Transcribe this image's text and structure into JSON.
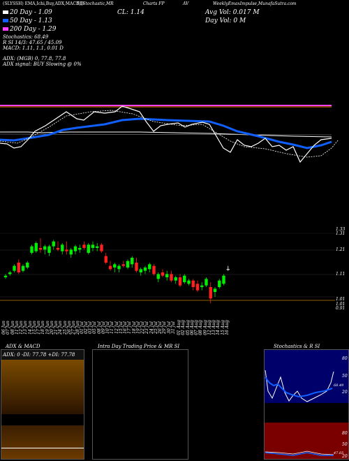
{
  "header": {
    "titles": [
      "(SLYSSH) EMA,Ichi,Buy,ADX,MACD,B",
      "SI,Stochastic,MR",
      "Charts FP",
      "AV",
      "WeeklyEmaxImpulse,MunafaSutra.com"
    ],
    "cl_label": "CL: 1.14",
    "avg_vol_label": "Avg Vol: 0.017 M",
    "day_vol_label": "Day Vol: 0   M",
    "ema": [
      {
        "label": "20  Day -  1.09",
        "color": "#ffffff"
      },
      {
        "label": "50  Day -  1.13",
        "color": "#1060ff"
      },
      {
        "label": "200  Day -  1.29",
        "color": "#ff40ff"
      }
    ],
    "stoch_line": "Stochastics: 68.49",
    "si_line": "R                       SI 14/3: 47.65 / 45.09",
    "macd_line": "MACD: 1.11,  1.1,  0.01 D",
    "adx_line": "ADX:                          (MGB) 0,  77.8,  77.8",
    "adx_signal_line": "ADX  signal:                               BUY Slowing @ 0%"
  },
  "price_axis_labels": [
    "1.33",
    "1.31",
    "1.21",
    "1.11",
    "1.01",
    "1.01",
    "0.91"
  ],
  "date_labels": [
    "06 Jun",
    "07 Jun",
    "08 Jun",
    "11 Jun",
    "12 Jun",
    "13 Jun",
    "14 Jun",
    "15 Jun",
    "17 Jun",
    "18 Jun",
    "19 Jun",
    "20 Jun",
    "21 Jun",
    "24 Jun",
    "25 Jun",
    "26 Jun",
    "27 Jun",
    "28 Jun",
    "01 Jul",
    "02 Jul",
    "03 Jul",
    "05 Jul",
    "08 Jul",
    "09 Jul",
    "10 Jul",
    "11 Jul",
    "12 Jul",
    "15 Jul",
    "16 Jul",
    "17 Jul",
    "18 Jul",
    "19 Jul",
    "22 Jul",
    "23 Jul",
    "24 Jul",
    "25 Jul",
    "26 Jul",
    "29 Jul",
    "30 Jul",
    "31 Jul",
    "01 Aug",
    "02 Aug",
    "05 Aug",
    "06 Aug",
    "07 Aug",
    "08 Aug",
    "09 Aug",
    "12 Aug",
    "13 Aug",
    "14 Aug",
    "15 Aug",
    "16 Aug"
  ],
  "bottom_panels": {
    "adx_title": "ADX  & MACD",
    "adx_legend": "ADX: 0  -DI: 77.78  +DI: 77.78",
    "intra_title": "Intra  Day Trading Price  & MR                    SI",
    "stoch_title": "Stochastics & R                    SI",
    "stoch_axis": [
      "80",
      "50",
      "20"
    ],
    "si_axis": [
      "80",
      "50",
      "20"
    ],
    "stoch_value": "68.49",
    "si_value": "47.65"
  },
  "chart_data": {
    "type": "candlestick",
    "ylim": [
      0.88,
      1.36
    ],
    "candles": [
      {
        "o": 1.09,
        "h": 1.11,
        "l": 1.08,
        "c": 1.1
      },
      {
        "o": 1.11,
        "h": 1.13,
        "l": 1.1,
        "c": 1.12
      },
      {
        "o": 1.13,
        "h": 1.17,
        "l": 1.12,
        "c": 1.16
      },
      {
        "o": 1.18,
        "h": 1.2,
        "l": 1.11,
        "c": 1.12
      },
      {
        "o": 1.13,
        "h": 1.17,
        "l": 1.12,
        "c": 1.16
      },
      {
        "o": 1.15,
        "h": 1.19,
        "l": 1.14,
        "c": 1.18
      },
      {
        "o": 1.24,
        "h": 1.29,
        "l": 1.23,
        "c": 1.28
      },
      {
        "o": 1.25,
        "h": 1.31,
        "l": 1.24,
        "c": 1.3
      },
      {
        "o": 1.27,
        "h": 1.33,
        "l": 1.24,
        "c": 1.26
      },
      {
        "o": 1.26,
        "h": 1.29,
        "l": 1.23,
        "c": 1.28
      },
      {
        "o": 1.24,
        "h": 1.29,
        "l": 1.22,
        "c": 1.28
      },
      {
        "o": 1.28,
        "h": 1.32,
        "l": 1.26,
        "c": 1.31
      },
      {
        "o": 1.27,
        "h": 1.31,
        "l": 1.25,
        "c": 1.26
      },
      {
        "o": 1.25,
        "h": 1.3,
        "l": 1.23,
        "c": 1.29
      },
      {
        "o": 1.26,
        "h": 1.31,
        "l": 1.23,
        "c": 1.25
      },
      {
        "o": 1.23,
        "h": 1.27,
        "l": 1.21,
        "c": 1.26
      },
      {
        "o": 1.25,
        "h": 1.29,
        "l": 1.23,
        "c": 1.28
      },
      {
        "o": 1.26,
        "h": 1.29,
        "l": 1.24,
        "c": 1.27
      },
      {
        "o": 1.29,
        "h": 1.31,
        "l": 1.26,
        "c": 1.27
      },
      {
        "o": 1.24,
        "h": 1.3,
        "l": 1.23,
        "c": 1.29
      },
      {
        "o": 1.27,
        "h": 1.31,
        "l": 1.25,
        "c": 1.29
      },
      {
        "o": 1.27,
        "h": 1.3,
        "l": 1.25,
        "c": 1.28
      },
      {
        "o": 1.29,
        "h": 1.3,
        "l": 1.24,
        "c": 1.25
      },
      {
        "o": 1.22,
        "h": 1.24,
        "l": 1.17,
        "c": 1.18
      },
      {
        "o": 1.16,
        "h": 1.19,
        "l": 1.13,
        "c": 1.14
      },
      {
        "o": 1.15,
        "h": 1.18,
        "l": 1.12,
        "c": 1.17
      },
      {
        "o": 1.14,
        "h": 1.17,
        "l": 1.12,
        "c": 1.16
      },
      {
        "o": 1.17,
        "h": 1.19,
        "l": 1.15,
        "c": 1.16
      },
      {
        "o": 1.15,
        "h": 1.2,
        "l": 1.14,
        "c": 1.19
      },
      {
        "o": 1.17,
        "h": 1.22,
        "l": 1.15,
        "c": 1.21
      },
      {
        "o": 1.18,
        "h": 1.21,
        "l": 1.12,
        "c": 1.13
      },
      {
        "o": 1.12,
        "h": 1.15,
        "l": 1.1,
        "c": 1.14
      },
      {
        "o": 1.13,
        "h": 1.16,
        "l": 1.11,
        "c": 1.15
      },
      {
        "o": 1.14,
        "h": 1.18,
        "l": 1.12,
        "c": 1.17
      },
      {
        "o": 1.16,
        "h": 1.17,
        "l": 1.1,
        "c": 1.11
      },
      {
        "o": 1.08,
        "h": 1.12,
        "l": 1.06,
        "c": 1.11
      },
      {
        "o": 1.12,
        "h": 1.14,
        "l": 1.09,
        "c": 1.1
      },
      {
        "o": 1.09,
        "h": 1.13,
        "l": 1.07,
        "c": 1.11
      },
      {
        "o": 1.11,
        "h": 1.13,
        "l": 1.06,
        "c": 1.07
      },
      {
        "o": 1.07,
        "h": 1.1,
        "l": 1.05,
        "c": 1.09
      },
      {
        "o": 1.09,
        "h": 1.11,
        "l": 1.03,
        "c": 1.04
      },
      {
        "o": 1.06,
        "h": 1.11,
        "l": 1.05,
        "c": 1.1
      },
      {
        "o": 1.05,
        "h": 1.08,
        "l": 1.04,
        "c": 1.07
      },
      {
        "o": 1.07,
        "h": 1.08,
        "l": 1.01,
        "c": 1.03
      },
      {
        "o": 1.05,
        "h": 1.07,
        "l": 1.0,
        "c": 1.01
      },
      {
        "o": 1.03,
        "h": 1.06,
        "l": 1.01,
        "c": 1.04
      },
      {
        "o": 1.04,
        "h": 1.09,
        "l": 1.03,
        "c": 1.08
      },
      {
        "o": 1.03,
        "h": 1.06,
        "l": 0.93,
        "c": 0.96
      },
      {
        "o": 1.0,
        "h": 1.03,
        "l": 0.97,
        "c": 1.02
      },
      {
        "o": 1.03,
        "h": 1.08,
        "l": 1.02,
        "c": 1.07
      },
      {
        "o": 1.05,
        "h": 1.11,
        "l": 1.04,
        "c": 1.1
      },
      {
        "o": 1.14,
        "h": 1.16,
        "l": 1.13,
        "c": 1.14
      }
    ]
  }
}
